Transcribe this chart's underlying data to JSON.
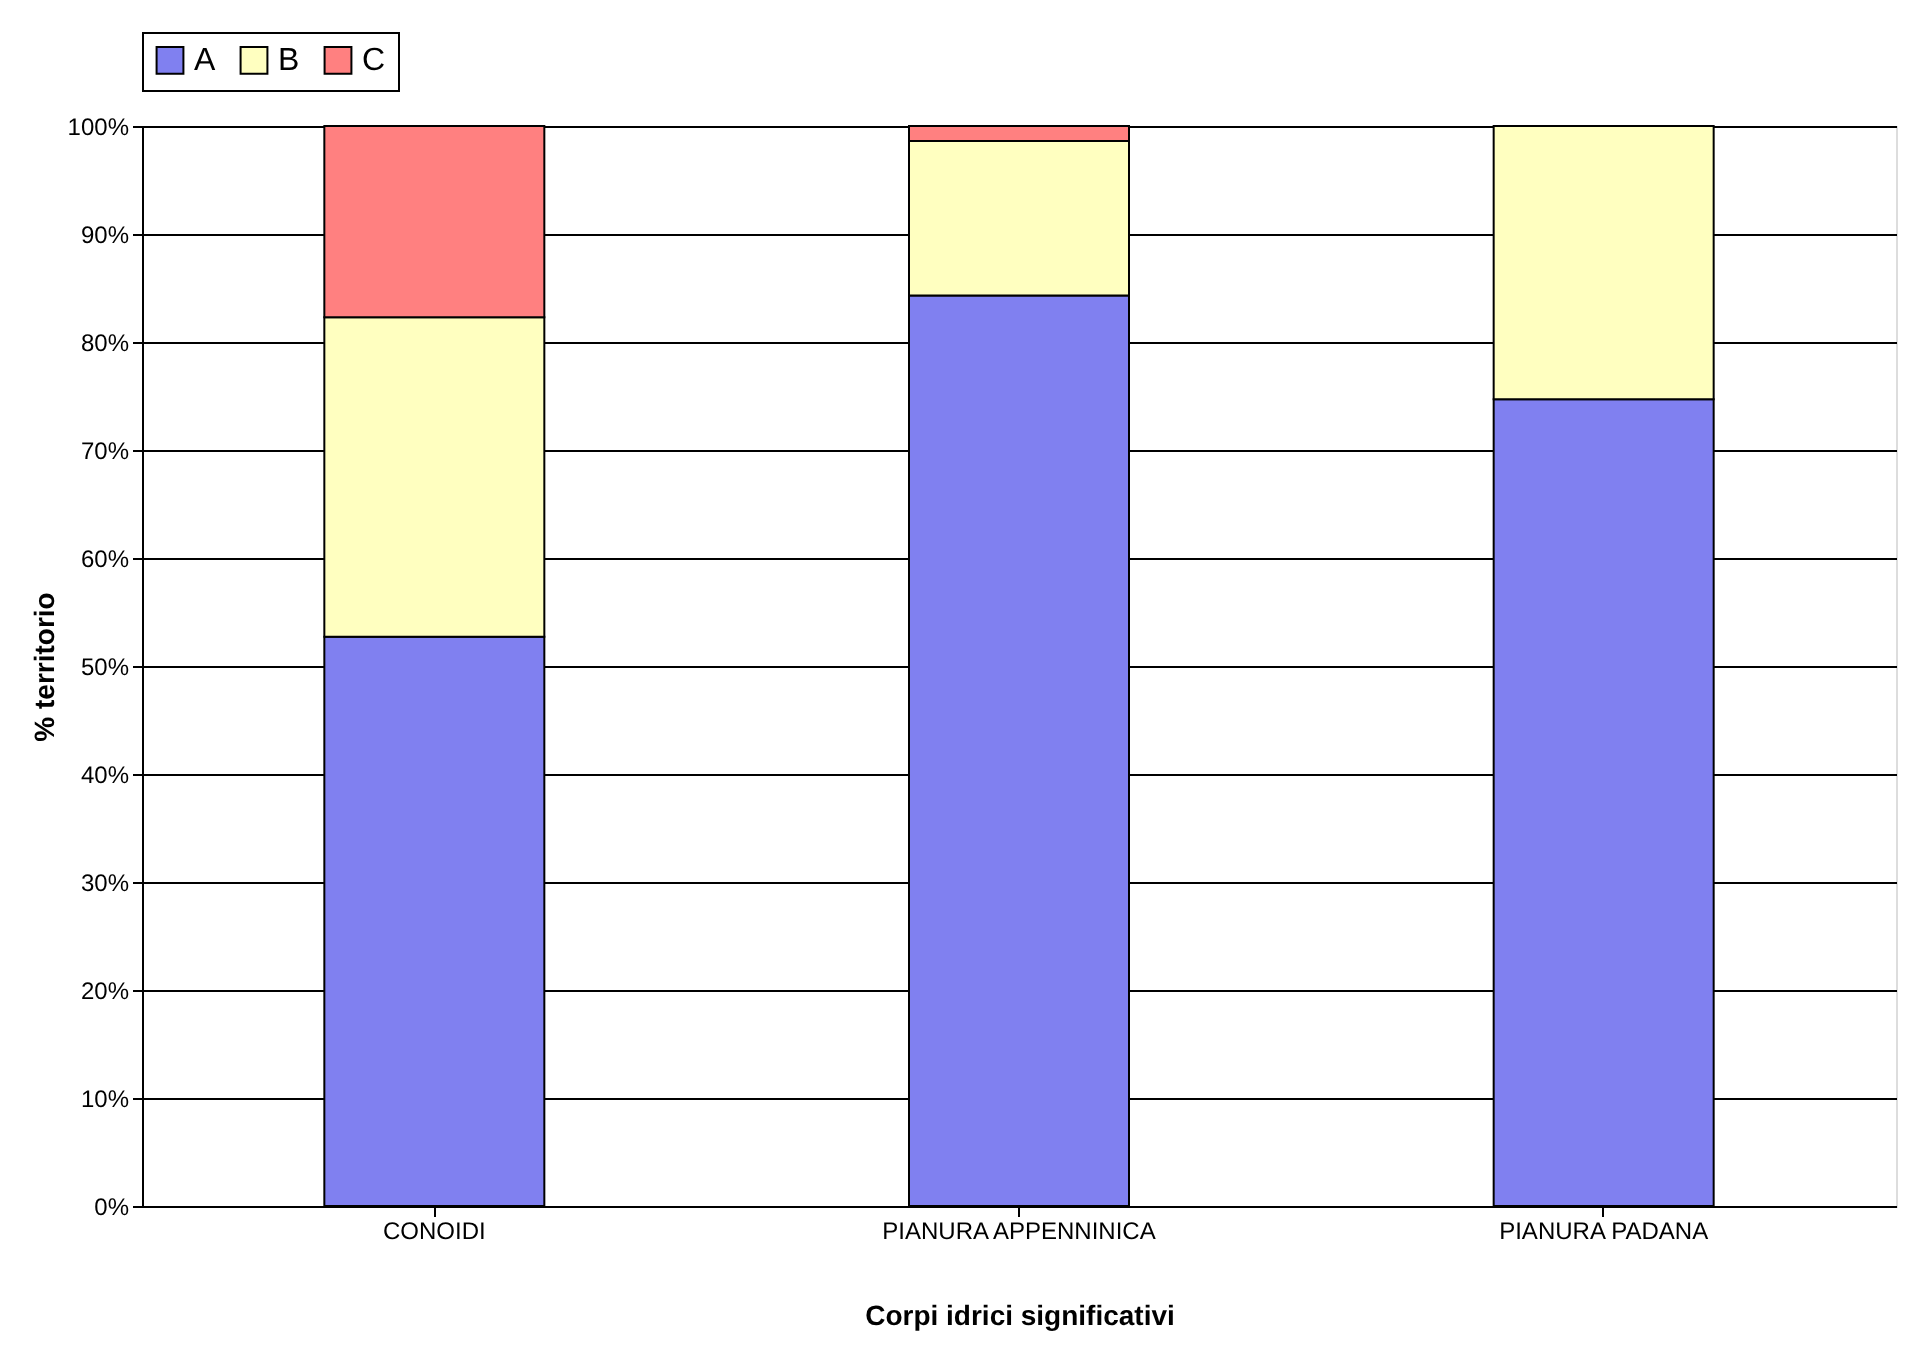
{
  "chart_data": {
    "type": "bar",
    "stacked": true,
    "xlabel": "Corpi idrici significativi",
    "ylabel": "% territorio",
    "categories": [
      "CONOIDI",
      "PIANURA APPENNINICA",
      "PIANURA PADANA"
    ],
    "series": [
      {
        "name": "A",
        "color": "#8080f0",
        "values": [
          52.7,
          84.3,
          74.7
        ]
      },
      {
        "name": "B",
        "color": "#ffffc0",
        "values": [
          29.6,
          14.3,
          25.3
        ]
      },
      {
        "name": "C",
        "color": "#ff8080",
        "values": [
          17.7,
          1.4,
          null
        ]
      }
    ],
    "ylim": [
      0,
      100
    ],
    "yticks": [
      {
        "value": 0,
        "label": "0%"
      },
      {
        "value": 10,
        "label": "10%"
      },
      {
        "value": 20,
        "label": "20%"
      },
      {
        "value": 30,
        "label": "30%"
      },
      {
        "value": 40,
        "label": "40%"
      },
      {
        "value": 50,
        "label": "50%"
      },
      {
        "value": 60,
        "label": "60%"
      },
      {
        "value": 70,
        "label": "70%"
      },
      {
        "value": 80,
        "label": "80%"
      },
      {
        "value": 90,
        "label": "90%"
      },
      {
        "value": 100,
        "label": "100%"
      }
    ],
    "grid": "y",
    "legend": "top"
  }
}
